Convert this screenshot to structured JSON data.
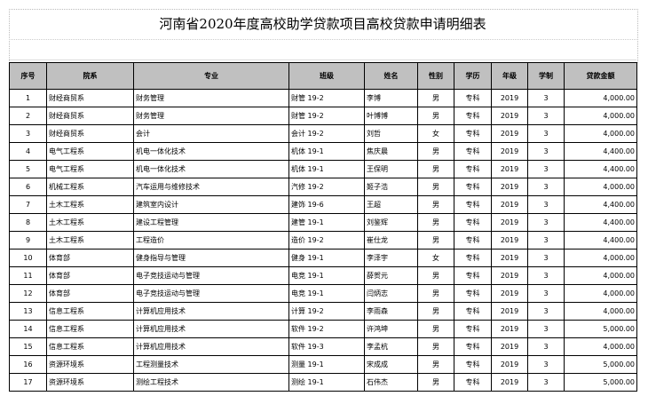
{
  "title": "河南省2020年度高校助学贷款项目高校贷款申请明细表",
  "headers": [
    "序号",
    "院系",
    "专业",
    "班级",
    "姓名",
    "性别",
    "学历",
    "年级",
    "学制",
    "贷款金额"
  ],
  "rows": [
    [
      "1",
      "财经商贸系",
      "财务管理",
      "财管 19-2",
      "李博",
      "男",
      "专科",
      "2019",
      "3",
      "4,000.00"
    ],
    [
      "2",
      "财经商贸系",
      "财务管理",
      "财管 19-2",
      "叶博博",
      "男",
      "专科",
      "2019",
      "3",
      "4,000.00"
    ],
    [
      "3",
      "财经商贸系",
      "会计",
      "会计 19-2",
      "刘哲",
      "女",
      "专科",
      "2019",
      "3",
      "4,000.00"
    ],
    [
      "4",
      "电气工程系",
      "机电一体化技术",
      "机体 19-1",
      "焦庆晨",
      "男",
      "专科",
      "2019",
      "3",
      "4,400.00"
    ],
    [
      "5",
      "电气工程系",
      "机电一体化技术",
      "机体 19-1",
      "王保明",
      "男",
      "专科",
      "2019",
      "3",
      "4,400.00"
    ],
    [
      "6",
      "机械工程系",
      "汽车运用与维修技术",
      "汽修 19-2",
      "姬子浩",
      "男",
      "专科",
      "2019",
      "3",
      "4,000.00"
    ],
    [
      "7",
      "土木工程系",
      "建筑室内设计",
      "建饰 19-6",
      "王超",
      "男",
      "专科",
      "2019",
      "3",
      "4,400.00"
    ],
    [
      "8",
      "土木工程系",
      "建设工程管理",
      "建管 19-1",
      "刘鉴辉",
      "男",
      "专科",
      "2019",
      "3",
      "4,400.00"
    ],
    [
      "9",
      "土木工程系",
      "工程造价",
      "造价 19-2",
      "崔仕龙",
      "男",
      "专科",
      "2019",
      "3",
      "4,400.00"
    ],
    [
      "10",
      "体育部",
      "健身指导与管理",
      "健身 19-1",
      "李泽宇",
      "女",
      "专科",
      "2019",
      "3",
      "4,000.00"
    ],
    [
      "11",
      "体育部",
      "电子竞技运动与管理",
      "电竞 19-1",
      "薛贺元",
      "男",
      "专科",
      "2019",
      "3",
      "4,000.00"
    ],
    [
      "12",
      "体育部",
      "电子竞技运动与管理",
      "电竞 19-1",
      "闫炳志",
      "男",
      "专科",
      "2019",
      "3",
      "4,000.00"
    ],
    [
      "13",
      "信息工程系",
      "计算机应用技术",
      "计算 19-2",
      "李雨森",
      "男",
      "专科",
      "2019",
      "3",
      "4,000.00"
    ],
    [
      "14",
      "信息工程系",
      "计算机应用技术",
      "软件 19-2",
      "许鸿坤",
      "男",
      "专科",
      "2019",
      "3",
      "5,000.00"
    ],
    [
      "15",
      "信息工程系",
      "计算机应用技术",
      "软件 19-3",
      "李孟杭",
      "男",
      "专科",
      "2019",
      "3",
      "4,000.00"
    ],
    [
      "16",
      "资源环境系",
      "工程测量技术",
      "测量 19-1",
      "宋成成",
      "男",
      "专科",
      "2019",
      "3",
      "5,000.00"
    ],
    [
      "17",
      "资源环境系",
      "测绘工程技术",
      "测绘 19-1",
      "石伟杰",
      "男",
      "专科",
      "2019",
      "3",
      "5,000.00"
    ]
  ]
}
